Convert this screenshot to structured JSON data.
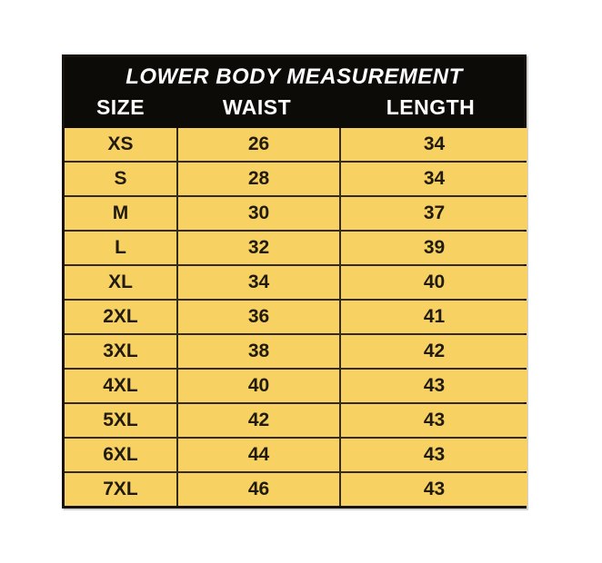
{
  "colors": {
    "header_bg": "#0d0b08",
    "header_text": "#ffffff",
    "body_bg": "#f7d262",
    "border": "#332a18",
    "body_text": "#211a0e",
    "page_bg": "#ffffff"
  },
  "chart_data": {
    "type": "table",
    "title": "LOWER BODY MEASUREMENT",
    "columns": [
      "SIZE",
      "WAIST",
      "LENGTH"
    ],
    "rows": [
      [
        "XS",
        "26",
        "34"
      ],
      [
        "S",
        "28",
        "34"
      ],
      [
        "M",
        "30",
        "37"
      ],
      [
        "L",
        "32",
        "39"
      ],
      [
        "XL",
        "34",
        "40"
      ],
      [
        "2XL",
        "36",
        "41"
      ],
      [
        "3XL",
        "38",
        "42"
      ],
      [
        "4XL",
        "40",
        "43"
      ],
      [
        "5XL",
        "42",
        "43"
      ],
      [
        "6XL",
        "44",
        "43"
      ],
      [
        "7XL",
        "46",
        "43"
      ]
    ]
  }
}
